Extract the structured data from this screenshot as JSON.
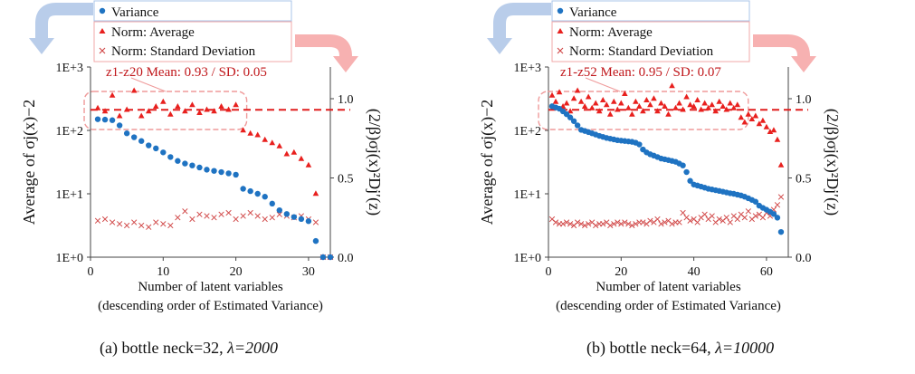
{
  "chart_data": [
    {
      "type": "scatter",
      "caption_prefix": "(a) bottle neck=32, ",
      "caption_lambda": "λ=2000",
      "legend": {
        "variance": "Variance",
        "norm_avg": "Norm: Average",
        "norm_sd": "Norm: Standard Deviation"
      },
      "xlabel": "Number of latent variables",
      "xlabel2": "(descending order of Estimated Variance)",
      "ylabel_left": "Average of  σj(x)−2",
      "ylabel_right": "(2/β)σj(x)²Dj′(z)",
      "annotation": "z1-z20 Mean: 0.93 / SD: 0.05",
      "reference_line": 0.93,
      "xlim": [
        0,
        33
      ],
      "xticks": [
        0,
        10,
        20,
        30
      ],
      "ylim_left_log10": [
        0,
        3
      ],
      "yticks_left": [
        "1E+0",
        "1E+1",
        "1E+2",
        "1E+3"
      ],
      "ylim_right": [
        0,
        1.2
      ],
      "yticks_right": [
        "0.0",
        "0.5",
        "1.0"
      ],
      "highlight_range": [
        1,
        20
      ],
      "series": [
        {
          "name": "Variance",
          "axis": "left",
          "values": [
            150,
            148,
            145,
            120,
            90,
            78,
            68,
            58,
            52,
            45,
            38,
            33,
            30,
            28,
            26,
            24,
            23,
            22,
            21,
            20,
            12,
            11,
            10,
            9,
            7,
            5.5,
            4.8,
            4.3,
            4.0,
            3.7,
            1.8,
            1.0,
            1.0
          ]
        },
        {
          "name": "Norm: Average",
          "axis": "right",
          "values": [
            0.94,
            0.92,
            1.02,
            0.89,
            0.93,
            1.05,
            0.89,
            0.92,
            0.95,
            0.98,
            0.9,
            0.95,
            0.92,
            0.96,
            0.91,
            0.93,
            0.92,
            0.95,
            0.93,
            0.96,
            0.8,
            0.78,
            0.77,
            0.74,
            0.72,
            0.7,
            0.65,
            0.66,
            0.62,
            0.58,
            0.4,
            0.0,
            0.0
          ]
        },
        {
          "name": "Norm: Standard Deviation",
          "axis": "right",
          "values": [
            0.23,
            0.24,
            0.22,
            0.21,
            0.2,
            0.22,
            0.2,
            0.19,
            0.22,
            0.21,
            0.2,
            0.25,
            0.29,
            0.24,
            0.27,
            0.26,
            0.25,
            0.27,
            0.28,
            0.24,
            0.26,
            0.28,
            0.26,
            0.24,
            0.25,
            0.27,
            0.26,
            0.25,
            0.26,
            0.24,
            0.22,
            0.0,
            0.0
          ]
        }
      ]
    },
    {
      "type": "scatter",
      "caption_prefix": "(b) bottle neck=64, ",
      "caption_lambda": "λ=10000",
      "legend": {
        "variance": "Variance",
        "norm_avg": "Norm: Average",
        "norm_sd": "Norm: Standard Deviation"
      },
      "xlabel": "Number of latent variables",
      "xlabel2": "(descending order of Estimated Variance)",
      "ylabel_left": "Average of  σj(x)−2",
      "ylabel_right": "(2/β)σj(x)²Dj′(z)",
      "annotation": "z1-z52 Mean: 0.95 / SD: 0.07",
      "reference_line": 0.93,
      "xlim": [
        0,
        66
      ],
      "xticks": [
        0,
        20,
        40,
        60
      ],
      "ylim_left_log10": [
        0,
        3
      ],
      "yticks_left": [
        "1E+0",
        "1E+1",
        "1E+2",
        "1E+3"
      ],
      "ylim_right": [
        0,
        1.2
      ],
      "yticks_right": [
        "0.0",
        "0.5",
        "1.0"
      ],
      "highlight_range": [
        1,
        52
      ],
      "series": [
        {
          "name": "Variance",
          "axis": "left",
          "values": [
            240,
            230,
            220,
            200,
            180,
            160,
            140,
            120,
            102,
            98,
            94,
            90,
            86,
            82,
            79,
            76,
            74,
            72,
            70,
            69,
            68,
            67,
            66,
            64,
            60,
            50,
            45,
            42,
            40,
            38,
            36,
            35,
            34,
            33,
            32,
            30,
            28,
            22,
            16,
            14,
            13.5,
            13,
            12.5,
            12,
            11.7,
            11.4,
            11.1,
            10.8,
            10.5,
            10.2,
            10.0,
            9.7,
            9.4,
            9.0,
            8.5,
            8.0,
            7.5,
            6.5,
            6.0,
            5.6,
            5.2,
            4.8,
            4.2,
            2.5
          ]
        },
        {
          "name": "Norm: Average",
          "axis": "right",
          "values": [
            1.02,
            0.98,
            1.04,
            0.95,
            0.97,
            0.92,
            1.0,
            1.05,
            0.98,
            0.95,
            1.01,
            0.94,
            0.97,
            0.92,
            0.99,
            0.96,
            0.9,
            0.98,
            0.93,
            0.97,
            1.03,
            0.94,
            0.9,
            0.98,
            0.95,
            0.92,
            0.99,
            0.96,
            1.0,
            0.92,
            0.97,
            0.95,
            0.9,
            1.08,
            0.94,
            0.97,
            0.93,
            1.01,
            0.96,
            0.95,
            0.99,
            0.93,
            0.97,
            0.94,
            0.96,
            0.92,
            0.98,
            0.95,
            0.93,
            0.97,
            0.94,
            0.96,
            0.88,
            0.85,
            0.9,
            0.87,
            0.89,
            0.84,
            0.86,
            0.82,
            0.79,
            0.8,
            0.74,
            0.58
          ]
        },
        {
          "name": "Norm: Standard Deviation",
          "axis": "right",
          "values": [
            0.24,
            0.22,
            0.21,
            0.21,
            0.22,
            0.21,
            0.2,
            0.22,
            0.21,
            0.2,
            0.21,
            0.22,
            0.2,
            0.21,
            0.21,
            0.22,
            0.2,
            0.21,
            0.22,
            0.21,
            0.22,
            0.21,
            0.2,
            0.21,
            0.22,
            0.22,
            0.21,
            0.23,
            0.22,
            0.24,
            0.21,
            0.22,
            0.23,
            0.21,
            0.22,
            0.22,
            0.28,
            0.25,
            0.23,
            0.24,
            0.22,
            0.25,
            0.27,
            0.24,
            0.26,
            0.22,
            0.24,
            0.23,
            0.25,
            0.22,
            0.26,
            0.24,
            0.27,
            0.25,
            0.29,
            0.24,
            0.26,
            0.27,
            0.25,
            0.28,
            0.26,
            0.3,
            0.33,
            0.38
          ]
        }
      ]
    }
  ]
}
